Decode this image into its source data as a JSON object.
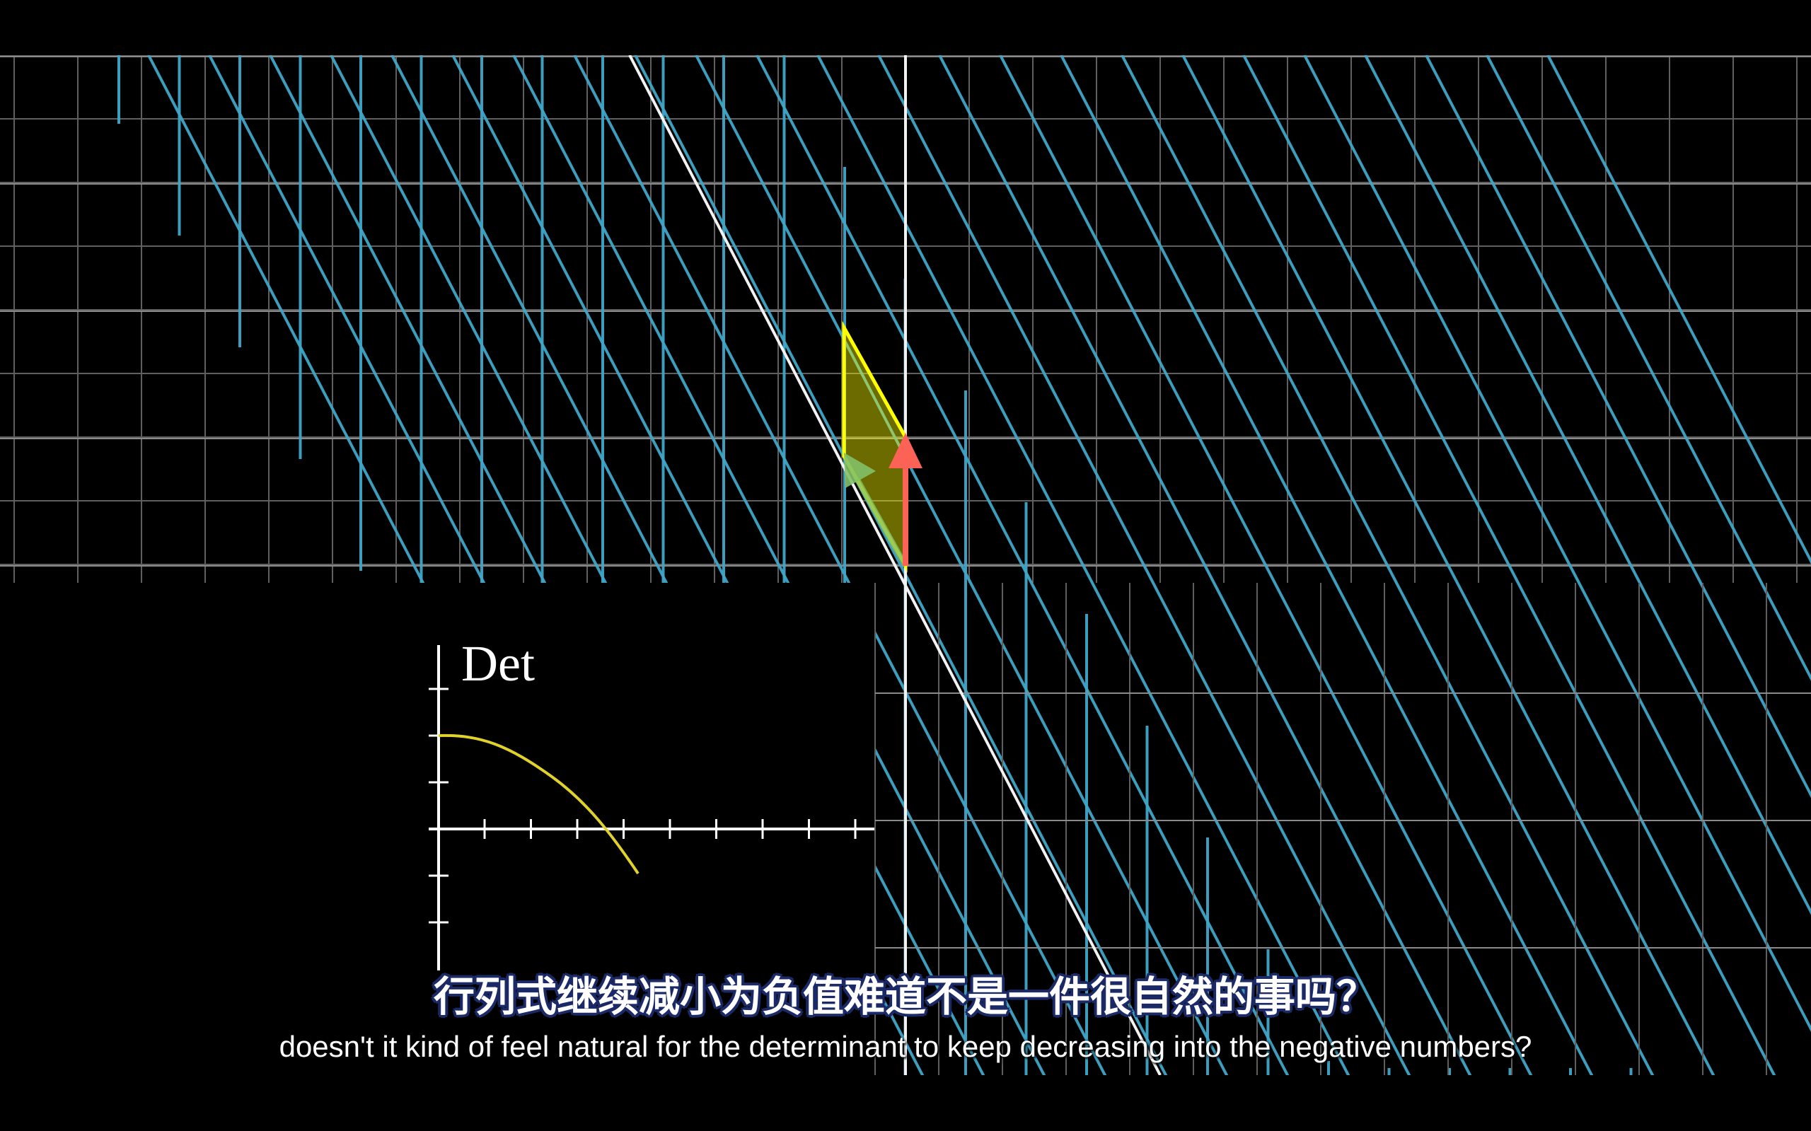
{
  "graph": {
    "det_label": "Det"
  },
  "subtitles": {
    "chinese": "行列式继续减小为负值难道不是一件很自然的事吗？",
    "english": "doesn't it kind of feel natural for the determinant to keep decreasing into the negative numbers?"
  },
  "colors": {
    "grid": "#5f5f5f",
    "transformed_grid": "#3fa7c8",
    "basis_i": "#83c167",
    "basis_j": "#fc6255",
    "area": "#ffff00",
    "det_curve": "#e0d22a"
  }
}
